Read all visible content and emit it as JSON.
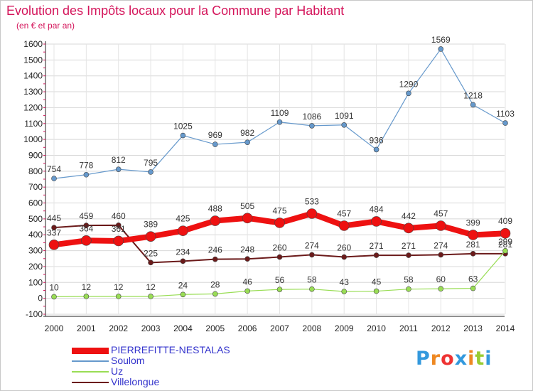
{
  "chart_data": {
    "type": "line",
    "title": "Evolution des Impôts locaux pour la Commune par Habitant",
    "subtitle": "(en € et par an)",
    "xlabel": "",
    "ylabel": "",
    "categories": [
      "2000",
      "2001",
      "2002",
      "2003",
      "2004",
      "2005",
      "2006",
      "2007",
      "2008",
      "2009",
      "2010",
      "2011",
      "2012",
      "2013",
      "2014"
    ],
    "ylim": [
      -100,
      1600
    ],
    "yticks": [
      -100,
      0,
      100,
      200,
      300,
      400,
      500,
      600,
      700,
      800,
      900,
      1000,
      1100,
      1200,
      1300,
      1400,
      1500,
      1600
    ],
    "grid": true,
    "legend_position": "bottom-left",
    "series": [
      {
        "name": "Villelongue",
        "color": "#6b1a1a",
        "values": [
          445,
          459,
          460,
          225,
          234,
          246,
          248,
          260,
          274,
          260,
          271,
          271,
          274,
          281,
          281
        ],
        "labels": [
          "445",
          "459",
          "460",
          "225",
          "234",
          "246",
          "248",
          "260",
          "274",
          "260",
          "271",
          "271",
          "274",
          "281",
          "281"
        ]
      },
      {
        "name": "Uz",
        "color": "#99dd55",
        "values": [
          10,
          12,
          12,
          12,
          24,
          28,
          46,
          56,
          58,
          43,
          45,
          58,
          60,
          63,
          299
        ],
        "labels": [
          "10",
          "12",
          "12",
          "12",
          "24",
          "28",
          "46",
          "56",
          "58",
          "43",
          "45",
          "58",
          "60",
          "63",
          "299"
        ]
      },
      {
        "name": "Soulom",
        "color": "#6699cc",
        "values": [
          754,
          778,
          812,
          795,
          1025,
          969,
          982,
          1109,
          1086,
          1091,
          936,
          1290,
          1569,
          1218,
          1103
        ],
        "labels": [
          "754",
          "778",
          "812",
          "795",
          "1025",
          "969",
          "982",
          "1109",
          "1086",
          "1091",
          "936",
          "1290",
          "1569",
          "1218",
          "1103"
        ]
      },
      {
        "name": "PIERREFITTE-NESTALAS",
        "color": "#ee1111",
        "values": [
          337,
          364,
          361,
          389,
          425,
          488,
          505,
          475,
          533,
          457,
          484,
          442,
          457,
          399,
          409
        ],
        "labels": [
          "337",
          "364",
          "361",
          "389",
          "425",
          "488",
          "505",
          "475",
          "533",
          "457",
          "484",
          "442",
          "457",
          "399",
          "409"
        ]
      }
    ]
  },
  "legend": {
    "items": [
      {
        "label": "PIERREFITTE-NESTALAS",
        "color": "#ee1111"
      },
      {
        "label": "Soulom",
        "color": "#6699cc"
      },
      {
        "label": "Uz",
        "color": "#99dd55"
      },
      {
        "label": "Villelongue",
        "color": "#6b1a1a"
      }
    ]
  },
  "logo": {
    "letters": [
      "P",
      "r",
      "o",
      "x",
      "i",
      "t",
      "i"
    ],
    "colors": [
      "#3399dd",
      "#ee8822",
      "#ee3333",
      "#3399dd",
      "#ee8822",
      "#99cc33",
      "#3399dd"
    ]
  }
}
